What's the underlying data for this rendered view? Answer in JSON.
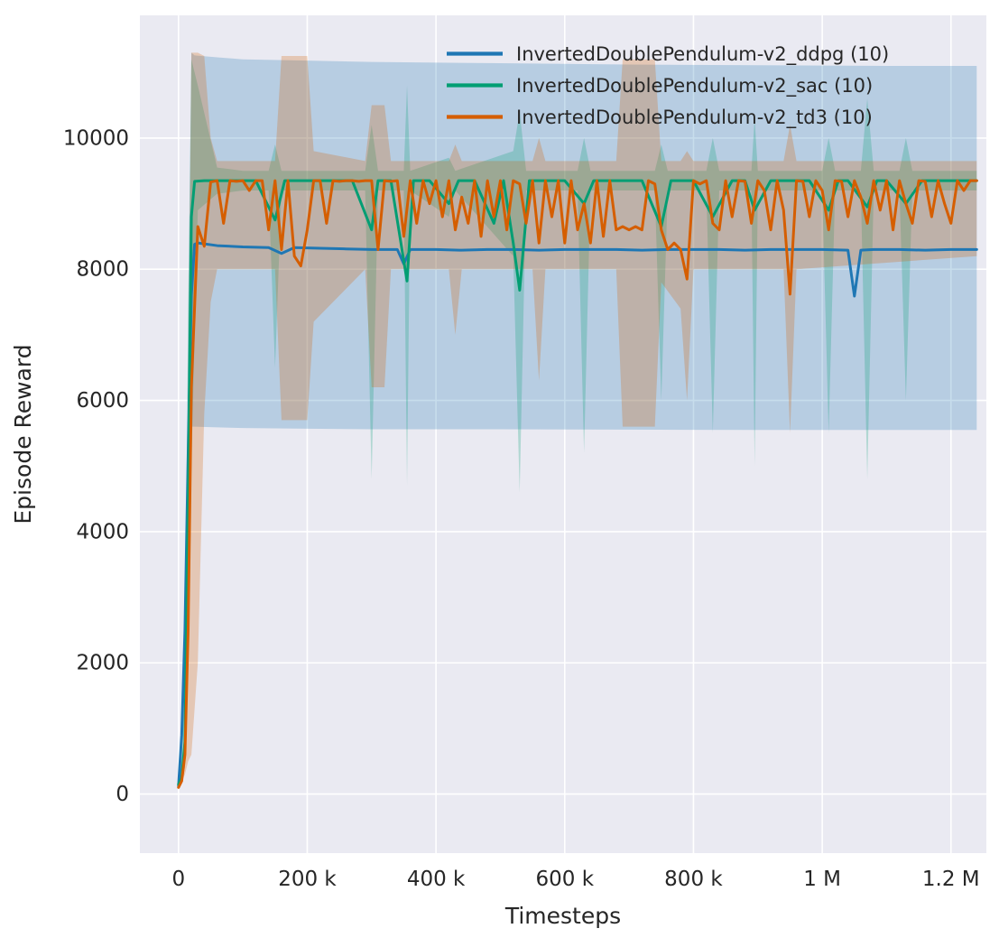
{
  "figure": {
    "background": "#ffffff",
    "plot_background": "#eaeaf2",
    "grid_color": "#ffffff",
    "text_color": "#262626"
  },
  "chart_data": {
    "type": "line",
    "title": "",
    "xlabel": "Timesteps",
    "ylabel": "Episode Reward",
    "grid": true,
    "legend_position": "upper center-right inside plot, frameless",
    "x_scale": 1000,
    "xlim": [
      -60,
      1255
    ],
    "ylim": [
      -900,
      11870
    ],
    "x_ticks": [
      {
        "value": 0,
        "label": "0"
      },
      {
        "value": 200,
        "label": "200 k"
      },
      {
        "value": 400,
        "label": "400 k"
      },
      {
        "value": 600,
        "label": "600 k"
      },
      {
        "value": 800,
        "label": "800 k"
      },
      {
        "value": 1000,
        "label": "1 M"
      },
      {
        "value": 1200,
        "label": "1.2 M"
      }
    ],
    "y_ticks": [
      {
        "value": 0,
        "label": "0"
      },
      {
        "value": 2000,
        "label": "2000"
      },
      {
        "value": 4000,
        "label": "4000"
      },
      {
        "value": 6000,
        "label": "6000"
      },
      {
        "value": 8000,
        "label": "8000"
      },
      {
        "value": 10000,
        "label": "10000"
      }
    ],
    "series": [
      {
        "key": "ddpg",
        "name": "InvertedDoublePendulum-v2_ddpg (10)",
        "color": "#1f77b4",
        "x": [
          0,
          5,
          10,
          15,
          20,
          25,
          30,
          60,
          100,
          140,
          160,
          180,
          220,
          260,
          300,
          340,
          350,
          360,
          400,
          440,
          480,
          520,
          560,
          600,
          640,
          680,
          720,
          760,
          800,
          840,
          880,
          920,
          960,
          1000,
          1040,
          1050,
          1060,
          1080,
          1120,
          1160,
          1200,
          1240
        ],
        "y": [
          120,
          900,
          2500,
          5200,
          7600,
          8380,
          8400,
          8360,
          8340,
          8330,
          8240,
          8330,
          8320,
          8310,
          8300,
          8300,
          8080,
          8300,
          8300,
          8290,
          8300,
          8300,
          8290,
          8300,
          8300,
          8300,
          8290,
          8300,
          8300,
          8300,
          8290,
          8300,
          8300,
          8300,
          8290,
          7590,
          8290,
          8300,
          8300,
          8290,
          8300,
          8300
        ],
        "band": {
          "x": [
            0,
            10,
            15,
            20,
            25,
            60,
            100,
            200,
            300,
            500,
            700,
            900,
            1100,
            1240
          ],
          "lo": [
            100,
            1500,
            3500,
            5600,
            5600,
            5590,
            5580,
            5570,
            5560,
            5560,
            5555,
            5550,
            5550,
            5550
          ],
          "hi": [
            150,
            2500,
            7000,
            11300,
            11260,
            11230,
            11200,
            11180,
            11160,
            11140,
            11120,
            11110,
            11100,
            11100
          ]
        }
      },
      {
        "key": "sac",
        "name": "InvertedDoublePendulum-v2_sac (10)",
        "color": "#029e73",
        "x": [
          0,
          5,
          10,
          15,
          20,
          25,
          40,
          60,
          80,
          100,
          120,
          150,
          165,
          180,
          210,
          240,
          270,
          300,
          310,
          330,
          355,
          365,
          390,
          420,
          435,
          460,
          490,
          505,
          520,
          530,
          545,
          570,
          600,
          630,
          645,
          665,
          690,
          720,
          750,
          765,
          780,
          800,
          830,
          860,
          880,
          895,
          920,
          950,
          980,
          1010,
          1025,
          1040,
          1070,
          1085,
          1100,
          1130,
          1155,
          1170,
          1200,
          1220,
          1240
        ],
        "y": [
          150,
          250,
          800,
          4500,
          8800,
          9340,
          9350,
          9350,
          9350,
          9350,
          9350,
          8750,
          9350,
          9350,
          9350,
          9350,
          9350,
          8600,
          9350,
          9350,
          7820,
          9350,
          9350,
          9000,
          9350,
          9350,
          8700,
          9350,
          8400,
          7680,
          9350,
          9350,
          9350,
          9000,
          9350,
          9350,
          9350,
          9350,
          8650,
          9350,
          9350,
          9350,
          8800,
          9350,
          9350,
          8900,
          9350,
          9350,
          9350,
          8900,
          9350,
          9350,
          8950,
          9350,
          9350,
          9000,
          9350,
          9350,
          9350,
          9350,
          9350
        ],
        "band": {
          "x": [
            0,
            10,
            15,
            20,
            30,
            60,
            100,
            140,
            150,
            160,
            290,
            300,
            310,
            350,
            355,
            360,
            420,
            430,
            520,
            530,
            540,
            620,
            630,
            640,
            740,
            750,
            760,
            820,
            830,
            840,
            890,
            895,
            900,
            1000,
            1010,
            1020,
            1060,
            1070,
            1080,
            1120,
            1130,
            1140,
            1240
          ],
          "lo": [
            100,
            400,
            2000,
            5000,
            8900,
            9150,
            9200,
            9200,
            6500,
            9200,
            9200,
            4800,
            9200,
            9200,
            4700,
            9200,
            8800,
            9200,
            8200,
            4600,
            9200,
            9200,
            5200,
            9200,
            9200,
            6000,
            9200,
            9200,
            5500,
            9200,
            9200,
            5000,
            9200,
            9200,
            5500,
            9200,
            9200,
            4800,
            9200,
            9200,
            6000,
            9200,
            9200
          ],
          "hi": [
            220,
            1500,
            7500,
            11200,
            10800,
            9550,
            9500,
            9500,
            9900,
            9500,
            9500,
            10200,
            9500,
            9500,
            10800,
            9500,
            9700,
            9500,
            9800,
            10400,
            9500,
            9500,
            10000,
            9500,
            9500,
            9900,
            9500,
            9500,
            10000,
            9500,
            9500,
            10300,
            9500,
            9500,
            10000,
            9500,
            9500,
            10600,
            9500,
            9500,
            10000,
            9500,
            9500
          ]
        }
      },
      {
        "key": "td3",
        "name": "InvertedDoublePendulum-v2_td3 (10)",
        "color": "#d55e00",
        "x": [
          0,
          5,
          10,
          15,
          20,
          30,
          40,
          50,
          60,
          70,
          80,
          90,
          100,
          110,
          120,
          130,
          140,
          150,
          160,
          170,
          180,
          190,
          200,
          210,
          220,
          230,
          240,
          250,
          260,
          270,
          280,
          290,
          300,
          310,
          320,
          330,
          340,
          350,
          360,
          370,
          380,
          390,
          400,
          410,
          420,
          430,
          440,
          450,
          460,
          470,
          480,
          490,
          500,
          510,
          520,
          530,
          540,
          550,
          560,
          570,
          580,
          590,
          600,
          610,
          620,
          630,
          640,
          650,
          660,
          670,
          680,
          690,
          700,
          710,
          720,
          730,
          740,
          750,
          760,
          770,
          780,
          790,
          800,
          810,
          820,
          830,
          840,
          850,
          860,
          870,
          880,
          890,
          900,
          910,
          920,
          930,
          940,
          950,
          960,
          970,
          980,
          990,
          1000,
          1010,
          1020,
          1030,
          1040,
          1050,
          1060,
          1070,
          1080,
          1090,
          1100,
          1110,
          1120,
          1130,
          1140,
          1150,
          1160,
          1170,
          1180,
          1190,
          1200,
          1210,
          1220,
          1230,
          1240
        ],
        "y": [
          100,
          200,
          600,
          2500,
          6200,
          8650,
          8350,
          9330,
          9350,
          8700,
          9350,
          9340,
          9350,
          9200,
          9350,
          9350,
          8600,
          9350,
          8300,
          9350,
          8200,
          8050,
          8600,
          9350,
          9350,
          8700,
          9350,
          9340,
          9350,
          9350,
          9340,
          9350,
          9350,
          8300,
          9350,
          9340,
          9350,
          8500,
          9350,
          8700,
          9350,
          9000,
          9350,
          8800,
          9350,
          8600,
          9100,
          8700,
          9350,
          8500,
          9350,
          8800,
          9350,
          8600,
          9350,
          9300,
          8700,
          9350,
          8400,
          9350,
          8800,
          9350,
          8400,
          9350,
          8600,
          9000,
          8400,
          9350,
          8500,
          9350,
          8600,
          8650,
          8600,
          8650,
          8600,
          9350,
          9300,
          8600,
          8300,
          8400,
          8300,
          7850,
          9350,
          9300,
          9350,
          8700,
          8600,
          9350,
          8800,
          9350,
          9340,
          8700,
          9350,
          9200,
          8600,
          9350,
          8900,
          7620,
          9350,
          9340,
          8800,
          9350,
          9200,
          8600,
          9350,
          9340,
          8800,
          9350,
          9100,
          8700,
          9350,
          8900,
          9350,
          8600,
          9350,
          9000,
          8700,
          9350,
          9340,
          8800,
          9350,
          9000,
          8700,
          9350,
          9200,
          9350,
          9350
        ],
        "band": {
          "x": [
            0,
            10,
            15,
            20,
            30,
            40,
            50,
            60,
            150,
            160,
            200,
            210,
            290,
            300,
            320,
            330,
            420,
            430,
            440,
            550,
            560,
            570,
            680,
            690,
            740,
            750,
            780,
            790,
            800,
            940,
            950,
            960,
            1240
          ],
          "lo": [
            80,
            300,
            500,
            600,
            2000,
            5800,
            7500,
            8000,
            8000,
            5700,
            5700,
            7200,
            8000,
            6200,
            6200,
            8000,
            8000,
            7000,
            8000,
            8000,
            6300,
            8000,
            8000,
            5600,
            5600,
            7800,
            7400,
            6000,
            8000,
            8000,
            5500,
            8000,
            8200
          ],
          "hi": [
            150,
            900,
            6000,
            11300,
            11300,
            11250,
            10000,
            9650,
            9650,
            11250,
            11250,
            9800,
            9650,
            10500,
            10500,
            9650,
            9650,
            9900,
            9650,
            9650,
            10000,
            9650,
            9650,
            11200,
            11200,
            9650,
            9650,
            9800,
            9650,
            9650,
            10200,
            9650,
            9650
          ]
        }
      }
    ]
  }
}
